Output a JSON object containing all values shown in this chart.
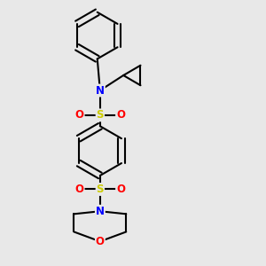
{
  "bg_color": "#e8e8e8",
  "bond_color": "#000000",
  "N_color": "#0000ff",
  "S_color": "#cccc00",
  "O_color": "#ff0000",
  "line_width": 1.5,
  "dbo": 0.012,
  "figsize": [
    3.0,
    3.0
  ],
  "dpi": 100,
  "xlim": [
    0.1,
    0.9
  ],
  "ylim": [
    0.02,
    0.98
  ]
}
